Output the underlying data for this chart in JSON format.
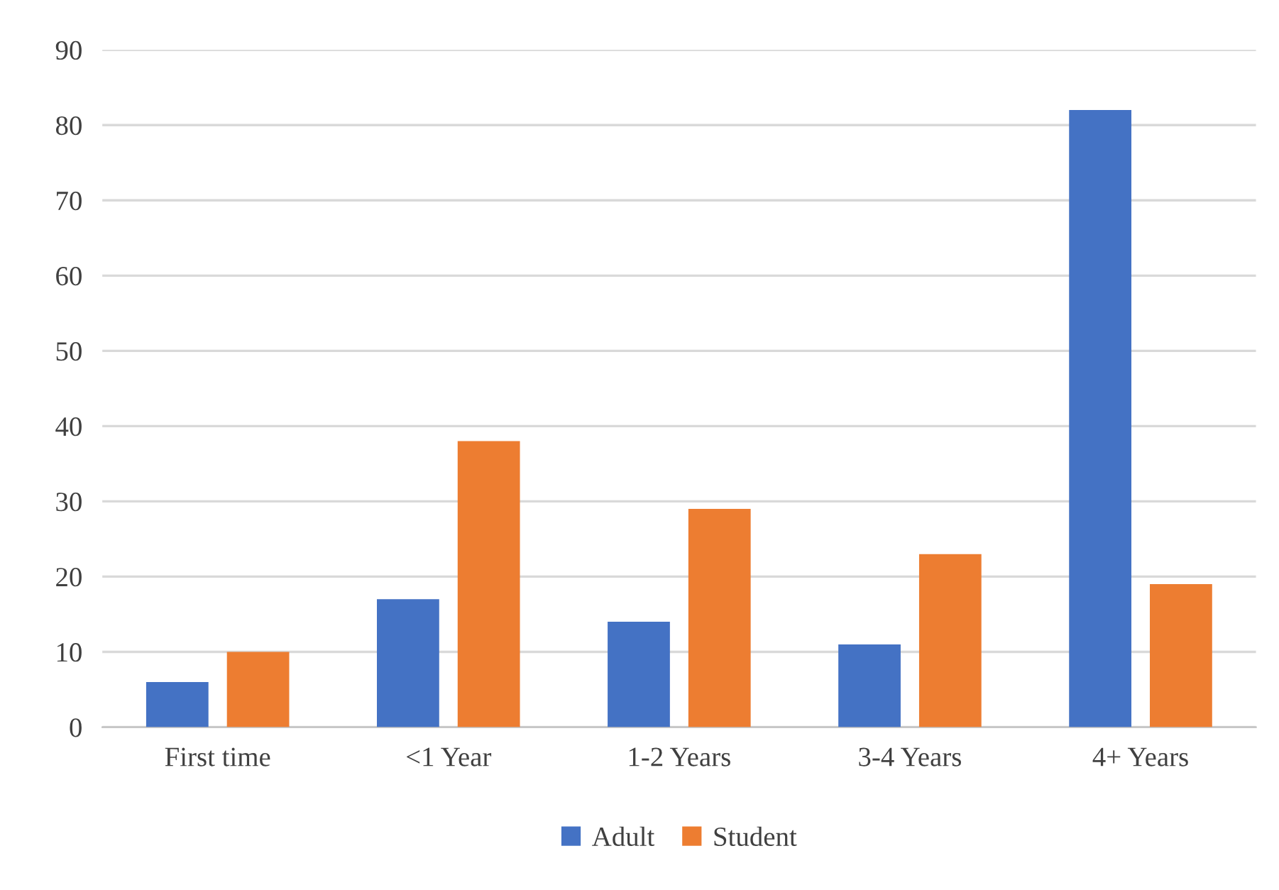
{
  "chart_data": {
    "type": "bar",
    "categories": [
      "First time",
      "<1 Year",
      "1-2 Years",
      "3-4 Years",
      "4+ Years"
    ],
    "series": [
      {
        "name": "Adult",
        "color": "#4472c4",
        "values": [
          6,
          17,
          14,
          11,
          82
        ]
      },
      {
        "name": "Student",
        "color": "#ed7d31",
        "values": [
          10,
          38,
          29,
          23,
          19
        ]
      }
    ],
    "ylim": [
      0,
      90
    ],
    "yticks": [
      0,
      10,
      20,
      30,
      40,
      50,
      60,
      70,
      80,
      90
    ],
    "grid": "y",
    "legend": "bottom"
  }
}
